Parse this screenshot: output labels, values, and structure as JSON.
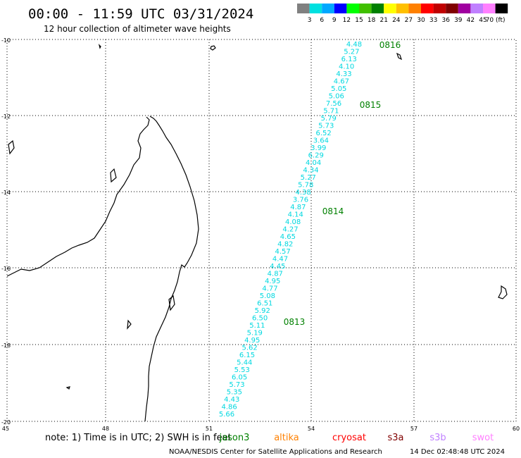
{
  "title": "00:00 - 11:59 UTC 03/31/2024",
  "subtitle": "12 hour collection of altimeter wave heights",
  "scale": {
    "labels": [
      "3",
      "6",
      "9",
      "12",
      "15",
      "18",
      "21",
      "24",
      "27",
      "30",
      "33",
      "36",
      "39",
      "42",
      "45",
      "70 (ft)"
    ],
    "colors": [
      "#808080",
      "#00e0e0",
      "#00a8ff",
      "#0000ff",
      "#00ff00",
      "#40c000",
      "#008000",
      "#ffff00",
      "#ffc000",
      "#ff8000",
      "#ff0000",
      "#c00000",
      "#800000",
      "#a000a0",
      "#c080ff",
      "#ff80ff",
      "#000000"
    ]
  },
  "axes": {
    "lat_labels": [
      "-10",
      "-12",
      "-14",
      "-16",
      "-18",
      "-20"
    ],
    "lon_labels": [
      "45",
      "48",
      "51",
      "54",
      "57",
      "60"
    ]
  },
  "passes": [
    "0816",
    "0815",
    "0814",
    "0813"
  ],
  "wave_heights": [
    "4.48",
    "5.27",
    "6.13",
    "4.10",
    "4.33",
    "4.67",
    "5.05",
    "5.06",
    "7.56",
    "5.71",
    "5.79",
    "5.73",
    "6.52",
    "3.64",
    "3.99",
    "6.29",
    "4.04",
    "4.34",
    "5.27",
    "5.78",
    "4.38",
    "3.76",
    "4.87",
    "4.14",
    "4.08",
    "4.27",
    "4.65",
    "4.82",
    "4.57",
    "4.47",
    "4.45",
    "4.87",
    "4.95",
    "4.77",
    "5.08",
    "6.51",
    "5.92",
    "6.50",
    "5.11",
    "5.19",
    "4.95",
    "5.62",
    "6.15",
    "5.44",
    "5.53",
    "6.05",
    "5.73",
    "5.35",
    "4.43",
    "4.86",
    "5.66"
  ],
  "note": {
    "prefix": "note: 1) Time is in UTC; 2) SWH is in feet",
    "satellites": [
      {
        "name": "jason3",
        "color": "#008000"
      },
      {
        "name": "altika",
        "color": "#ff8000"
      },
      {
        "name": "cryosat",
        "color": "#ff0000"
      },
      {
        "name": "s3a",
        "color": "#800000"
      },
      {
        "name": "s3b",
        "color": "#c080ff"
      },
      {
        "name": "swot",
        "color": "#ff80ff"
      }
    ]
  },
  "footer": {
    "credit": "NOAA/NESDIS Center for Satellite Applications and Research",
    "timestamp": "14 Dec 02:48:48 UTC 2024"
  }
}
